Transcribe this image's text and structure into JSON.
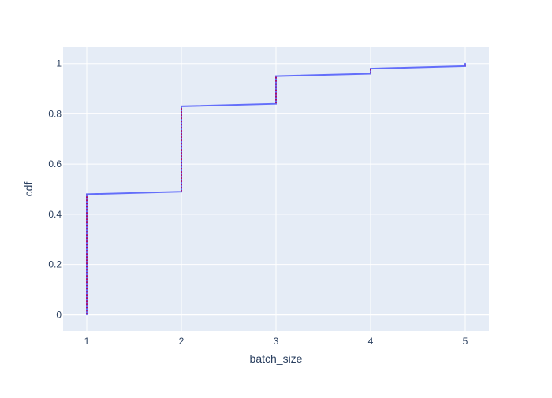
{
  "chart_data": {
    "type": "line",
    "line_shape": "step",
    "title": "",
    "xlabel": "batch_size",
    "ylabel": "cdf",
    "xlim": [
      0.75,
      5.25
    ],
    "ylim": [
      -0.065,
      1.065
    ],
    "x_ticks": [
      1,
      2,
      3,
      4,
      5
    ],
    "x_tick_labels": [
      "1",
      "2",
      "3",
      "4",
      "5"
    ],
    "y_ticks": [
      0,
      0.2,
      0.4,
      0.6,
      0.8,
      1
    ],
    "y_tick_labels": [
      "0",
      "0.2",
      "0.4",
      "0.6",
      "0.8",
      "1"
    ],
    "grid": true,
    "legend": "none",
    "colors": {
      "plot_background": "#e5ecf6",
      "grid": "#ffffff",
      "line": "#636efa",
      "jump_marker": "#ab0e6a"
    },
    "series": [
      {
        "x": [
          1,
          1,
          2,
          2,
          3,
          3,
          4,
          4,
          5,
          5
        ],
        "y": [
          0,
          0.48,
          0.49,
          0.83,
          0.84,
          0.95,
          0.96,
          0.98,
          0.99,
          1.0
        ]
      }
    ]
  }
}
